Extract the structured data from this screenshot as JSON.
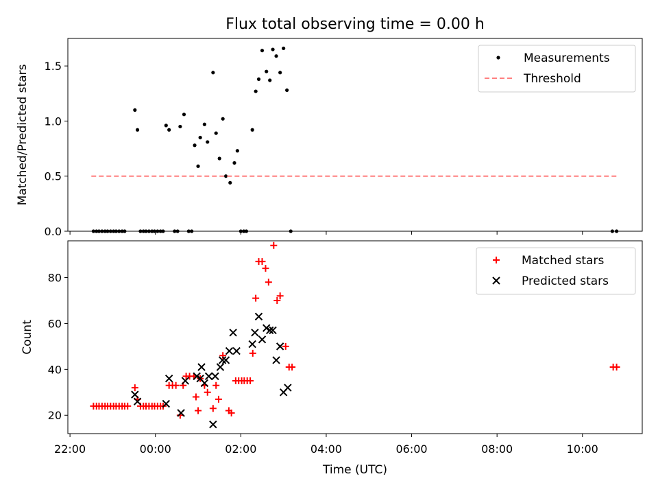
{
  "title": "Flux total observing time = 0.00 h",
  "chart_data": [
    {
      "type": "scatter",
      "title": "Flux total observing time = 0.00 h",
      "xlabel": "",
      "ylabel": "Matched/Predicted stars",
      "x_unit": "hours relative to 00:00 UTC",
      "xlim": [
        -2.05,
        11.4
      ],
      "ylim": [
        0,
        1.75
      ],
      "yticks": [
        "0.0",
        "0.5",
        "1.0",
        "1.5"
      ],
      "grid": false,
      "legend_position": "top-right",
      "series": [
        {
          "name": "Measurements",
          "marker": "dot",
          "color": "#000000",
          "points": [
            [
              -1.45,
              0
            ],
            [
              -1.38,
              0
            ],
            [
              -1.32,
              0
            ],
            [
              -1.25,
              0
            ],
            [
              -1.18,
              0
            ],
            [
              -1.12,
              0
            ],
            [
              -1.05,
              0
            ],
            [
              -0.98,
              0
            ],
            [
              -0.92,
              0
            ],
            [
              -0.85,
              0
            ],
            [
              -0.78,
              0
            ],
            [
              -0.72,
              0
            ],
            [
              -0.48,
              1.1
            ],
            [
              -0.42,
              0.92
            ],
            [
              -0.35,
              0
            ],
            [
              -0.28,
              0
            ],
            [
              -0.22,
              0
            ],
            [
              -0.15,
              0
            ],
            [
              -0.08,
              0
            ],
            [
              -0.02,
              0
            ],
            [
              0.05,
              0
            ],
            [
              0.12,
              0
            ],
            [
              0.18,
              0
            ],
            [
              0.25,
              0.96
            ],
            [
              0.32,
              0.92
            ],
            [
              0.45,
              0
            ],
            [
              0.52,
              0
            ],
            [
              0.58,
              0.95
            ],
            [
              0.67,
              1.06
            ],
            [
              0.78,
              0
            ],
            [
              0.85,
              0
            ],
            [
              0.92,
              0.78
            ],
            [
              1.0,
              0.59
            ],
            [
              1.05,
              0.85
            ],
            [
              1.15,
              0.97
            ],
            [
              1.22,
              0.81
            ],
            [
              1.35,
              1.44
            ],
            [
              1.42,
              0.89
            ],
            [
              1.5,
              0.66
            ],
            [
              1.58,
              1.02
            ],
            [
              1.65,
              0.5
            ],
            [
              1.75,
              0.44
            ],
            [
              1.85,
              0.62
            ],
            [
              1.92,
              0.73
            ],
            [
              2.0,
              0
            ],
            [
              2.07,
              0
            ],
            [
              2.13,
              0
            ],
            [
              2.27,
              0.92
            ],
            [
              2.35,
              1.27
            ],
            [
              2.42,
              1.38
            ],
            [
              2.5,
              1.64
            ],
            [
              2.6,
              1.45
            ],
            [
              2.68,
              1.37
            ],
            [
              2.75,
              1.65
            ],
            [
              2.83,
              1.59
            ],
            [
              2.92,
              1.44
            ],
            [
              3.0,
              1.66
            ],
            [
              3.08,
              1.28
            ],
            [
              3.17,
              0
            ],
            [
              10.7,
              0
            ],
            [
              10.8,
              0
            ]
          ]
        },
        {
          "name": "Threshold",
          "marker": "dashed-line",
          "color": "#ff7f7f",
          "points": [
            [
              -1.5,
              0.5
            ],
            [
              10.8,
              0.5
            ]
          ]
        }
      ]
    },
    {
      "type": "scatter",
      "title": "",
      "xlabel": "Time (UTC)",
      "ylabel": "Count",
      "x_unit": "hours relative to 00:00 UTC",
      "xlim": [
        -2.05,
        11.4
      ],
      "ylim": [
        12,
        96
      ],
      "yticks": [
        "20",
        "40",
        "60",
        "80"
      ],
      "xticks": [
        "22:00",
        "00:00",
        "02:00",
        "04:00",
        "06:00",
        "08:00",
        "10:00"
      ],
      "grid": false,
      "legend_position": "top-right",
      "series": [
        {
          "name": "Matched stars",
          "marker": "plus",
          "color": "#ff0000",
          "points": [
            [
              -1.45,
              24
            ],
            [
              -1.38,
              24
            ],
            [
              -1.32,
              24
            ],
            [
              -1.25,
              24
            ],
            [
              -1.18,
              24
            ],
            [
              -1.12,
              24
            ],
            [
              -1.05,
              24
            ],
            [
              -0.98,
              24
            ],
            [
              -0.92,
              24
            ],
            [
              -0.85,
              24
            ],
            [
              -0.78,
              24
            ],
            [
              -0.72,
              24
            ],
            [
              -0.65,
              24
            ],
            [
              -0.48,
              32
            ],
            [
              -0.42,
              27
            ],
            [
              -0.35,
              24
            ],
            [
              -0.28,
              24
            ],
            [
              -0.22,
              24
            ],
            [
              -0.15,
              24
            ],
            [
              -0.08,
              24
            ],
            [
              -0.02,
              24
            ],
            [
              0.05,
              24
            ],
            [
              0.12,
              24
            ],
            [
              0.18,
              24
            ],
            [
              0.32,
              33
            ],
            [
              0.4,
              33
            ],
            [
              0.48,
              33
            ],
            [
              0.58,
              20
            ],
            [
              0.65,
              33
            ],
            [
              0.72,
              37
            ],
            [
              0.8,
              37
            ],
            [
              0.9,
              37
            ],
            [
              0.95,
              28
            ],
            [
              1.0,
              22
            ],
            [
              1.05,
              36
            ],
            [
              1.15,
              33
            ],
            [
              1.22,
              30
            ],
            [
              1.35,
              23
            ],
            [
              1.42,
              33
            ],
            [
              1.48,
              27
            ],
            [
              1.58,
              46
            ],
            [
              1.72,
              22
            ],
            [
              1.78,
              21
            ],
            [
              1.88,
              35
            ],
            [
              1.95,
              35
            ],
            [
              2.02,
              35
            ],
            [
              2.08,
              35
            ],
            [
              2.15,
              35
            ],
            [
              2.22,
              35
            ],
            [
              2.28,
              47
            ],
            [
              2.35,
              71
            ],
            [
              2.42,
              87
            ],
            [
              2.5,
              87
            ],
            [
              2.58,
              84
            ],
            [
              2.65,
              78
            ],
            [
              2.77,
              94
            ],
            [
              2.85,
              70
            ],
            [
              2.92,
              72
            ],
            [
              3.05,
              50
            ],
            [
              3.13,
              41
            ],
            [
              3.2,
              41
            ],
            [
              10.72,
              41
            ],
            [
              10.8,
              41
            ]
          ]
        },
        {
          "name": "Predicted stars",
          "marker": "x",
          "color": "#000000",
          "points": [
            [
              -0.48,
              29
            ],
            [
              -0.42,
              26
            ],
            [
              0.25,
              25
            ],
            [
              0.32,
              36
            ],
            [
              0.6,
              21
            ],
            [
              0.7,
              35
            ],
            [
              0.97,
              37
            ],
            [
              1.05,
              36
            ],
            [
              1.08,
              41
            ],
            [
              1.15,
              34
            ],
            [
              1.25,
              37
            ],
            [
              1.35,
              16
            ],
            [
              1.4,
              37
            ],
            [
              1.52,
              41
            ],
            [
              1.57,
              44
            ],
            [
              1.65,
              44
            ],
            [
              1.73,
              48
            ],
            [
              1.82,
              56
            ],
            [
              1.9,
              48
            ],
            [
              2.27,
              51
            ],
            [
              2.33,
              56
            ],
            [
              2.42,
              63
            ],
            [
              2.5,
              53
            ],
            [
              2.6,
              58
            ],
            [
              2.68,
              57
            ],
            [
              2.75,
              57
            ],
            [
              2.83,
              44
            ],
            [
              2.92,
              50
            ],
            [
              3.0,
              30
            ],
            [
              3.1,
              32
            ]
          ]
        }
      ]
    }
  ]
}
